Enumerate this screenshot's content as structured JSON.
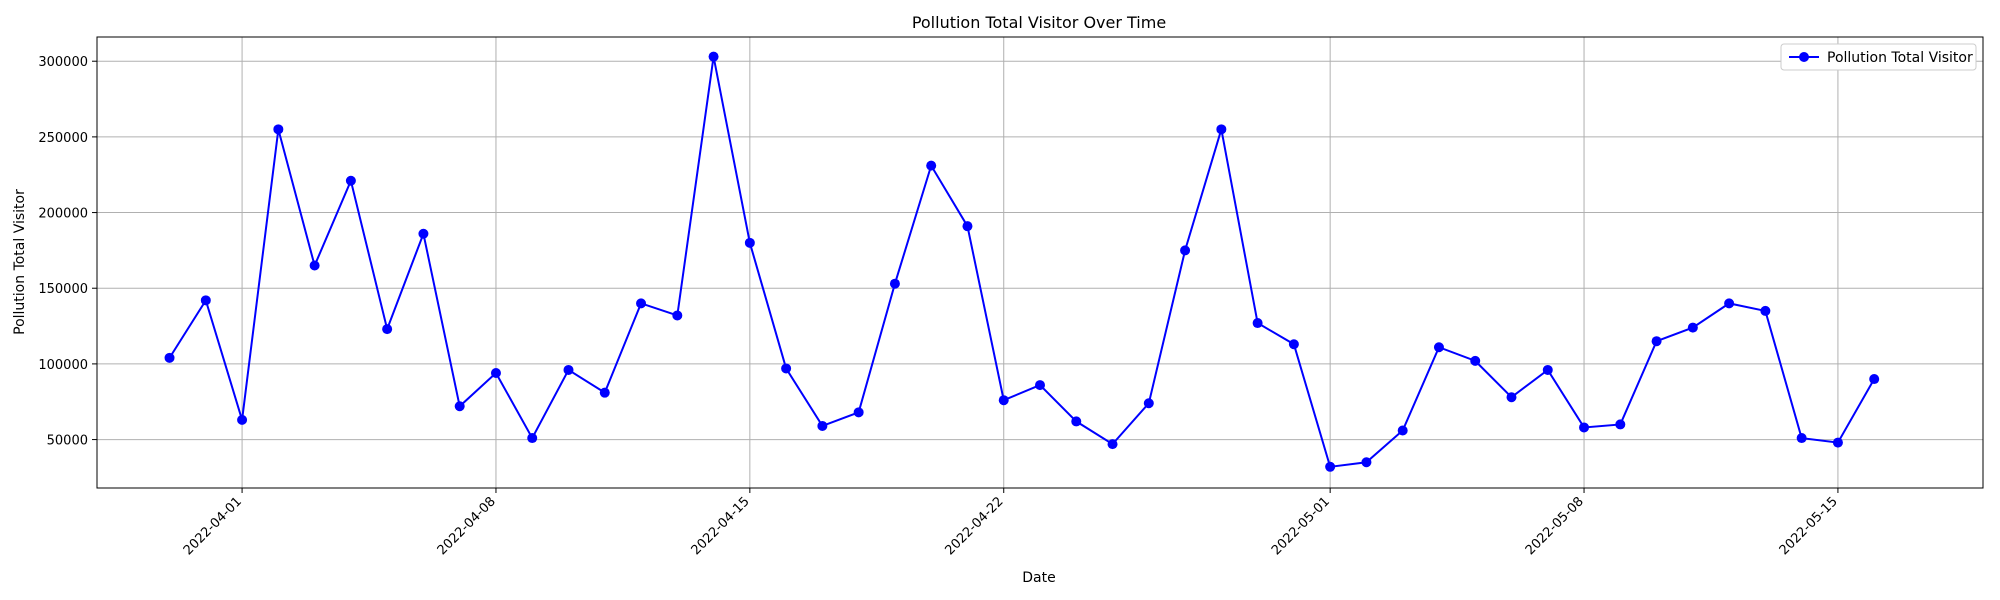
{
  "chart_data": {
    "type": "line",
    "title": "Pollution Total Visitor Over Time",
    "xlabel": "Date",
    "ylabel": "Pollution Total Visitor",
    "grid": true,
    "legend_position": "top-right",
    "x_ticks": [
      "2022-04-01",
      "2022-04-08",
      "2022-04-15",
      "2022-04-22",
      "2022-05-01",
      "2022-05-08",
      "2022-05-15"
    ],
    "y_ticks": [
      50000,
      100000,
      150000,
      200000,
      250000,
      300000
    ],
    "y_tick_labels": [
      "50000",
      "100000",
      "150000",
      "200000",
      "250000",
      "300000"
    ],
    "xlim": [
      "2022-03-28",
      "2022-05-19"
    ],
    "ylim": [
      18000,
      316000
    ],
    "series": [
      {
        "name": "Pollution Total Visitor",
        "color": "#0000ff",
        "marker": "circle",
        "x": [
          "2022-03-30",
          "2022-03-31",
          "2022-04-01",
          "2022-04-02",
          "2022-04-03",
          "2022-04-04",
          "2022-04-05",
          "2022-04-06",
          "2022-04-07",
          "2022-04-08",
          "2022-04-09",
          "2022-04-10",
          "2022-04-11",
          "2022-04-12",
          "2022-04-13",
          "2022-04-14",
          "2022-04-15",
          "2022-04-16",
          "2022-04-17",
          "2022-04-18",
          "2022-04-19",
          "2022-04-20",
          "2022-04-21",
          "2022-04-22",
          "2022-04-23",
          "2022-04-24",
          "2022-04-25",
          "2022-04-26",
          "2022-04-27",
          "2022-04-28",
          "2022-04-29",
          "2022-04-30",
          "2022-05-01",
          "2022-05-02",
          "2022-05-03",
          "2022-05-04",
          "2022-05-05",
          "2022-05-06",
          "2022-05-07",
          "2022-05-08",
          "2022-05-09",
          "2022-05-10",
          "2022-05-11",
          "2022-05-12",
          "2022-05-13",
          "2022-05-14",
          "2022-05-15",
          "2022-05-16"
        ],
        "y": [
          104000,
          142000,
          63000,
          255000,
          165000,
          221000,
          123000,
          186000,
          72000,
          94000,
          51000,
          96000,
          81000,
          140000,
          132000,
          303000,
          180000,
          97000,
          59000,
          68000,
          153000,
          231000,
          191000,
          76000,
          86000,
          62000,
          47000,
          74000,
          175000,
          255000,
          127000,
          113000,
          32000,
          35000,
          56000,
          111000,
          102000,
          78000,
          96000,
          58000,
          60000,
          115000,
          124000,
          140000,
          135000,
          51000,
          48000,
          90000
        ]
      }
    ]
  }
}
